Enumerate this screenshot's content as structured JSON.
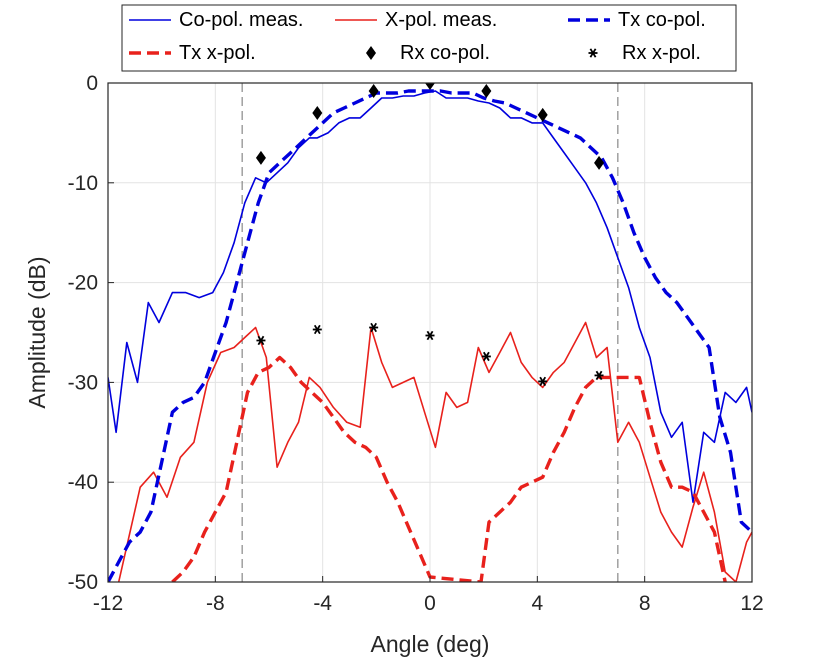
{
  "chart_data": {
    "type": "line",
    "xlabel": "Angle (deg)",
    "ylabel": "Amplitude (dB)",
    "xlim": [
      -12,
      12
    ],
    "ylim": [
      -50,
      0
    ],
    "xticks": [
      "-12",
      "-8",
      "-4",
      "0",
      "4",
      "8",
      "12"
    ],
    "yticks": [
      "0",
      "-10",
      "-20",
      "-30",
      "-40",
      "-50"
    ],
    "grid": true,
    "vlines": [
      -7,
      7
    ],
    "legend_position": "top",
    "series": [
      {
        "name": "Co-pol. meas.",
        "color": "#0000dd",
        "style": "solid",
        "x": [
          -12,
          -11.7,
          -11.3,
          -10.9,
          -10.5,
          -10.1,
          -9.6,
          -9.1,
          -8.6,
          -8.1,
          -7.7,
          -7.3,
          -6.9,
          -6.5,
          -6.1,
          -5.7,
          -5.3,
          -4.9,
          -4.5,
          -4.2,
          -3.8,
          -3.4,
          -3.0,
          -2.6,
          -2.2,
          -1.8,
          -1.4,
          -1.0,
          -0.6,
          -0.2,
          0.2,
          0.6,
          1.0,
          1.4,
          1.8,
          2.2,
          2.6,
          3.0,
          3.4,
          3.8,
          4.2,
          4.6,
          5.0,
          5.4,
          5.8,
          6.2,
          6.6,
          7.0,
          7.4,
          7.8,
          8.2,
          8.6,
          9.0,
          9.4,
          9.8,
          10.2,
          10.6,
          11.0,
          11.4,
          11.8,
          12.0
        ],
        "y": [
          -29.5,
          -35,
          -26,
          -30,
          -22,
          -24,
          -21,
          -21,
          -21.5,
          -21,
          -19,
          -16,
          -12,
          -9.5,
          -10,
          -9,
          -8,
          -6.5,
          -5.5,
          -5.5,
          -5,
          -4,
          -3.5,
          -3.5,
          -2.5,
          -1.5,
          -1.5,
          -1.3,
          -1.3,
          -1,
          -0.8,
          -1.5,
          -1.5,
          -1.5,
          -1.8,
          -2,
          -2.5,
          -3.5,
          -3.5,
          -4,
          -4,
          -5.5,
          -7,
          -8.5,
          -10,
          -12,
          -14.5,
          -17.5,
          -20.5,
          -24.5,
          -27.5,
          -33,
          -35.5,
          -34,
          -42,
          -35,
          -36,
          -31,
          -32,
          -30.5,
          -33
        ]
      },
      {
        "name": "X-pol. meas.",
        "color": "#e8211c",
        "style": "solid",
        "x": [
          -11.6,
          -10.8,
          -10.3,
          -9.8,
          -9.3,
          -8.8,
          -8.3,
          -7.8,
          -7.3,
          -6.9,
          -6.5,
          -6.1,
          -5.7,
          -5.3,
          -4.9,
          -4.5,
          -4.1,
          -3.6,
          -3.1,
          -2.6,
          -2.2,
          -1.8,
          -1.4,
          -1.0,
          -0.6,
          -0.2,
          0.2,
          0.6,
          1.0,
          1.4,
          1.8,
          2.2,
          2.6,
          3.0,
          3.4,
          3.8,
          4.2,
          4.6,
          5.0,
          5.4,
          5.8,
          6.2,
          6.6,
          7.0,
          7.4,
          7.8,
          8.2,
          8.6,
          9.0,
          9.4,
          9.8,
          10.2,
          10.6,
          11.0,
          11.4,
          11.8,
          12.0
        ],
        "y": [
          -50,
          -40.5,
          -39,
          -41.5,
          -37.5,
          -36,
          -30,
          -27,
          -26.5,
          -25.5,
          -24.5,
          -27.5,
          -38.5,
          -36,
          -34,
          -29.5,
          -30.5,
          -32.5,
          -34,
          -34.5,
          -24.5,
          -28,
          -30.5,
          -30,
          -29.5,
          -33,
          -36.5,
          -31,
          -32.5,
          -32,
          -26.5,
          -29,
          -27,
          -25,
          -28,
          -29.5,
          -30.5,
          -29,
          -28,
          -26,
          -24,
          -27.5,
          -26.5,
          -36,
          -34,
          -36,
          -39.5,
          -43,
          -45,
          -46.5,
          -42.5,
          -39,
          -43,
          -49,
          -50,
          -46,
          -45
        ]
      },
      {
        "name": "Tx co-pol.",
        "color": "#0000dd",
        "style": "dashed",
        "x": [
          -12,
          -11.6,
          -11.2,
          -10.8,
          -10.4,
          -10.0,
          -9.6,
          -9.2,
          -8.8,
          -8.4,
          -8.0,
          -7.6,
          -7.2,
          -6.8,
          -6.4,
          -6.0,
          -5.6,
          -5.2,
          -4.8,
          -4.4,
          -4.0,
          -3.6,
          -3.2,
          -2.8,
          -2.4,
          -2.0,
          -1.6,
          -1.2,
          -0.8,
          -0.4,
          0.0,
          0.4,
          0.8,
          1.2,
          1.6,
          2.0,
          2.4,
          2.8,
          3.2,
          3.6,
          4.0,
          4.4,
          4.8,
          5.2,
          5.6,
          6.0,
          6.4,
          6.8,
          7.2,
          7.6,
          8.0,
          8.4,
          8.8,
          9.2,
          9.6,
          10.0,
          10.4,
          10.8,
          11.2,
          11.6,
          12.0
        ],
        "y": [
          -50,
          -48,
          -46,
          -45,
          -43,
          -38,
          -33,
          -32,
          -31.5,
          -30,
          -27,
          -24,
          -20,
          -16,
          -12,
          -9,
          -8,
          -7,
          -6,
          -5,
          -4,
          -3,
          -2.5,
          -2,
          -1.5,
          -1,
          -1,
          -1,
          -0.8,
          -0.8,
          -0.8,
          -0.8,
          -1,
          -1,
          -1,
          -1.5,
          -1.8,
          -2,
          -2.5,
          -3,
          -3.5,
          -4,
          -4.5,
          -5,
          -5.5,
          -6.5,
          -7.5,
          -9.5,
          -12,
          -15,
          -17.5,
          -19.5,
          -21,
          -22,
          -23.5,
          -25,
          -26.5,
          -33.5,
          -37,
          -44,
          -45
        ]
      },
      {
        "name": "Tx x-pol.",
        "color": "#e8211c",
        "style": "dashed",
        "x": [
          -9.6,
          -9.2,
          -8.8,
          -8.4,
          -8.0,
          -7.6,
          -7.2,
          -6.8,
          -6.4,
          -6.0,
          -5.6,
          -5.2,
          -4.8,
          -4.4,
          -4.0,
          -3.6,
          -3.2,
          -2.8,
          -2.4,
          -2.0,
          -1.6,
          -1.2,
          -0.8,
          -0.4,
          0.0,
          1.9,
          2.2,
          2.6,
          3.0,
          3.4,
          3.8,
          4.2,
          4.6,
          5.0,
          5.4,
          5.8,
          6.2,
          6.6,
          7.0,
          7.4,
          7.8,
          8.2,
          8.6,
          9.0,
          9.4,
          9.8,
          10.2,
          10.6,
          11.0
        ],
        "y": [
          -50,
          -49,
          -47.5,
          -45,
          -43,
          -41,
          -36,
          -31,
          -29,
          -28.5,
          -27.5,
          -28.5,
          -30,
          -31,
          -32,
          -33.5,
          -35,
          -36,
          -36.5,
          -37.5,
          -40,
          -42,
          -44.5,
          -47,
          -49.5,
          -50,
          -44,
          -43,
          -42,
          -40.5,
          -40,
          -39.5,
          -37,
          -35,
          -32.5,
          -30.5,
          -29.5,
          -29.5,
          -29.5,
          -29.5,
          -29.5,
          -34,
          -38,
          -40.5,
          -40.5,
          -41,
          -43,
          -45,
          -50
        ]
      },
      {
        "name": "Rx co-pol.",
        "color": "#000000",
        "style": "diamond",
        "x": [
          -6.3,
          -4.2,
          -2.1,
          0.0,
          2.1,
          4.2,
          6.3
        ],
        "y": [
          -7.5,
          -3,
          -0.8,
          0,
          -0.8,
          -3.2,
          -8
        ]
      },
      {
        "name": "Rx x-pol.",
        "color": "#000000",
        "style": "asterisk",
        "x": [
          -6.3,
          -4.2,
          -2.1,
          0.0,
          2.1,
          4.2,
          6.3
        ],
        "y": [
          -25.8,
          -24.7,
          -24.5,
          -25.3,
          -27.4,
          -29.9,
          -29.3
        ]
      }
    ]
  }
}
